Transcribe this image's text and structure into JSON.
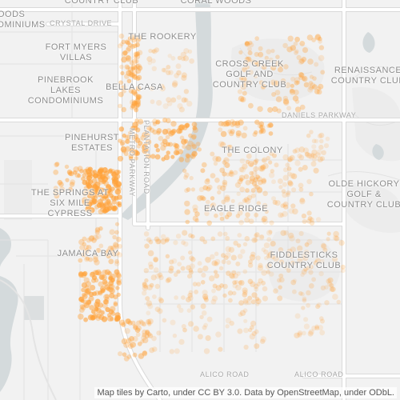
{
  "map": {
    "neighborhoods": [
      {
        "id": "country-club",
        "lines": [
          "COUNTRY CLUB"
        ]
      },
      {
        "id": "coral-woods",
        "lines": [
          "CORAL WOODS"
        ]
      },
      {
        "id": "woods-miniums",
        "lines": [
          "OODS",
          "DMINIUMS"
        ]
      },
      {
        "id": "the-rookery",
        "lines": [
          "THE ROOKERY"
        ]
      },
      {
        "id": "fort-myers-villas",
        "lines": [
          "FORT MYERS",
          "VILLAS"
        ]
      },
      {
        "id": "cross-creek",
        "lines": [
          "CROSS CREEK",
          "GOLF AND",
          "COUNTRY CLUB"
        ]
      },
      {
        "id": "renaissance",
        "lines": [
          "RENAISSANCE",
          "COUNTRY CLUB"
        ]
      },
      {
        "id": "pinebrook",
        "lines": [
          "PINEBROOK",
          "LAKES",
          "CONDOMINIUMS"
        ]
      },
      {
        "id": "bella-casa",
        "lines": [
          "BELLA CASA"
        ]
      },
      {
        "id": "pinehurst",
        "lines": [
          "PINEHURST",
          "ESTATES"
        ]
      },
      {
        "id": "the-colony",
        "lines": [
          "THE COLONY"
        ]
      },
      {
        "id": "olde-hickory",
        "lines": [
          "OLDE HICKORY",
          "GOLF &",
          "COUNTRY CLUB"
        ]
      },
      {
        "id": "the-springs",
        "lines": [
          "THE SPRINGS AT",
          "SIX MILE",
          "CYPRESS"
        ]
      },
      {
        "id": "eagle-ridge",
        "lines": [
          "EAGLE RIDGE"
        ]
      },
      {
        "id": "jamaica-bay",
        "lines": [
          "JAMAICA BAY"
        ]
      },
      {
        "id": "fiddlesticks",
        "lines": [
          "FIDDLESTICKS",
          "COUNTRY CLUB"
        ]
      }
    ],
    "roads": {
      "crystal_drive": "CRYSTAL DRIVE",
      "daniels_parkway": "DANIELS PARKWAY",
      "plantation_road": "PLANTATION ROAD",
      "metro_parkway": "METRO PARKWAY",
      "alico_road_1": "ALICO ROAD",
      "alico_road_2": "ALICO ROAD"
    },
    "attribution": "Map tiles by Carto, under CC BY 3.0. Data by OpenStreetMap, under ODbL.",
    "colors": {
      "land": "#f2f2f2",
      "water": "#d4dadc",
      "road_major": "#ffffff",
      "road_casing": "#dadada",
      "label": "#8c8c8c",
      "point": "#ffa23a"
    }
  }
}
